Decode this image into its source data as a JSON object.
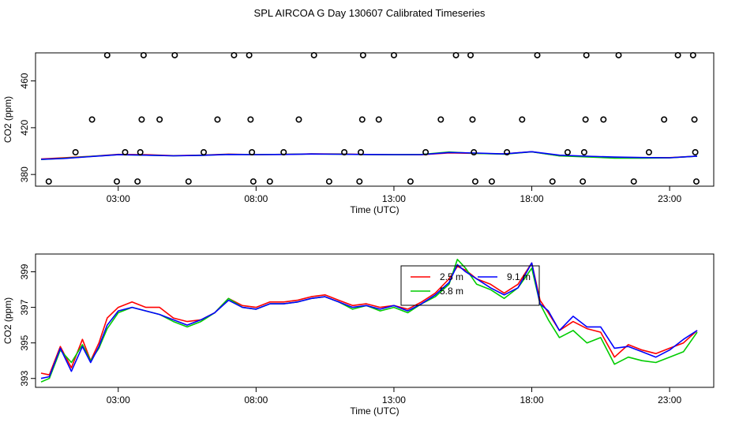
{
  "title": "SPL AIRCOA G  Day 130607  Calibrated Timeseries",
  "colors": {
    "red": "#ff0000",
    "green": "#00cc00",
    "blue": "#0000ff",
    "black": "#000000"
  },
  "chart_data": [
    {
      "type": "scatter",
      "name": "top-panel",
      "xlabel": "Time (UTC)",
      "ylabel": "CO2 (ppm)",
      "xlim": [
        0,
        24.6
      ],
      "ylim": [
        370,
        484
      ],
      "xticks": [
        3,
        8,
        13,
        18,
        23
      ],
      "xtick_labels": [
        "03:00",
        "08:00",
        "13:00",
        "18:00",
        "23:00"
      ],
      "yticks": [
        380,
        420,
        460
      ],
      "ytick_labels": [
        "380",
        "420",
        "460"
      ],
      "points": [
        {
          "x": 0.48,
          "y": 374
        },
        {
          "x": 1.45,
          "y": 399
        },
        {
          "x": 2.05,
          "y": 427
        },
        {
          "x": 2.6,
          "y": 482
        },
        {
          "x": 2.95,
          "y": 374
        },
        {
          "x": 3.25,
          "y": 399
        },
        {
          "x": 3.7,
          "y": 374
        },
        {
          "x": 3.8,
          "y": 399
        },
        {
          "x": 3.85,
          "y": 427
        },
        {
          "x": 3.92,
          "y": 482
        },
        {
          "x": 4.5,
          "y": 427
        },
        {
          "x": 5.05,
          "y": 482
        },
        {
          "x": 5.55,
          "y": 374
        },
        {
          "x": 6.1,
          "y": 399
        },
        {
          "x": 6.6,
          "y": 427
        },
        {
          "x": 7.2,
          "y": 482
        },
        {
          "x": 7.75,
          "y": 482
        },
        {
          "x": 7.8,
          "y": 427
        },
        {
          "x": 7.85,
          "y": 399
        },
        {
          "x": 7.9,
          "y": 374
        },
        {
          "x": 8.5,
          "y": 374
        },
        {
          "x": 9.0,
          "y": 399
        },
        {
          "x": 9.55,
          "y": 427
        },
        {
          "x": 10.1,
          "y": 482
        },
        {
          "x": 10.65,
          "y": 374
        },
        {
          "x": 11.2,
          "y": 399
        },
        {
          "x": 11.75,
          "y": 374
        },
        {
          "x": 11.8,
          "y": 399
        },
        {
          "x": 11.85,
          "y": 427
        },
        {
          "x": 11.88,
          "y": 482
        },
        {
          "x": 12.45,
          "y": 427
        },
        {
          "x": 13.0,
          "y": 482
        },
        {
          "x": 13.6,
          "y": 374
        },
        {
          "x": 14.15,
          "y": 399
        },
        {
          "x": 14.7,
          "y": 427
        },
        {
          "x": 15.25,
          "y": 482
        },
        {
          "x": 15.78,
          "y": 482
        },
        {
          "x": 15.85,
          "y": 427
        },
        {
          "x": 15.9,
          "y": 399
        },
        {
          "x": 15.95,
          "y": 374
        },
        {
          "x": 16.55,
          "y": 374
        },
        {
          "x": 17.1,
          "y": 399
        },
        {
          "x": 17.65,
          "y": 427
        },
        {
          "x": 18.2,
          "y": 482
        },
        {
          "x": 18.75,
          "y": 374
        },
        {
          "x": 19.3,
          "y": 399
        },
        {
          "x": 19.85,
          "y": 374
        },
        {
          "x": 19.9,
          "y": 399
        },
        {
          "x": 19.95,
          "y": 427
        },
        {
          "x": 19.98,
          "y": 482
        },
        {
          "x": 20.6,
          "y": 427
        },
        {
          "x": 21.15,
          "y": 482
        },
        {
          "x": 21.7,
          "y": 374
        },
        {
          "x": 22.25,
          "y": 399
        },
        {
          "x": 22.8,
          "y": 427
        },
        {
          "x": 23.3,
          "y": 482
        },
        {
          "x": 23.85,
          "y": 482
        },
        {
          "x": 23.9,
          "y": 427
        },
        {
          "x": 23.93,
          "y": 399
        },
        {
          "x": 23.97,
          "y": 374
        }
      ],
      "series": [
        {
          "name": "2.5 m",
          "color": "#ff0000",
          "x": [
            0.2,
            1,
            2,
            3,
            4,
            5,
            6,
            7,
            8,
            9,
            10,
            11,
            12,
            13,
            14,
            15,
            16,
            17,
            18,
            19,
            20,
            21,
            22,
            23,
            24
          ],
          "y": [
            393.2,
            394.2,
            395.5,
            397.2,
            396.9,
            396.1,
            396.5,
            397.4,
            397.0,
            397.2,
            397.6,
            397.5,
            397.1,
            397.0,
            396.9,
            398.5,
            398.0,
            397.6,
            399.5,
            396.0,
            395.5,
            394.6,
            394.4,
            394.4,
            395.7
          ]
        },
        {
          "name": "5.8 m",
          "color": "#00cc00",
          "x": [
            0.2,
            1,
            2,
            3,
            4,
            5,
            6,
            7,
            8,
            9,
            10,
            11,
            12,
            13,
            14,
            15,
            16,
            17,
            18,
            19,
            20,
            21,
            22,
            23,
            24
          ],
          "y": [
            392.8,
            393.8,
            395.4,
            396.9,
            396.5,
            396.0,
            396.4,
            397.2,
            397.0,
            397.2,
            397.5,
            397.4,
            397.0,
            396.9,
            397.1,
            399.2,
            398.0,
            397.4,
            399.4,
            395.9,
            395.0,
            394.0,
            394.0,
            394.2,
            395.7
          ]
        },
        {
          "name": "9.1 m",
          "color": "#0000ff",
          "x": [
            0.2,
            1,
            2,
            3,
            4,
            5,
            6,
            7,
            8,
            9,
            10,
            11,
            12,
            13,
            14,
            15,
            16,
            17,
            18,
            19,
            20,
            21,
            22,
            23,
            24
          ],
          "y": [
            393.0,
            393.6,
            395.3,
            396.9,
            396.5,
            396.0,
            396.4,
            397.1,
            397.0,
            397.1,
            397.5,
            397.3,
            397.1,
            397.0,
            397.0,
            398.8,
            398.3,
            397.6,
            399.5,
            396.5,
            395.6,
            394.9,
            394.5,
            394.3,
            395.7
          ]
        }
      ]
    },
    {
      "type": "line",
      "name": "bottom-panel",
      "xlabel": "Time (UTC)",
      "ylabel": "CO2 (ppm)",
      "xlim": [
        0,
        24.6
      ],
      "ylim": [
        392.5,
        400.0
      ],
      "xticks": [
        3,
        8,
        13,
        18,
        23
      ],
      "xtick_labels": [
        "03:00",
        "08:00",
        "13:00",
        "18:00",
        "23:00"
      ],
      "yticks": [
        393,
        395,
        397,
        399
      ],
      "ytick_labels": [
        "393",
        "395",
        "397",
        "399"
      ],
      "legend": {
        "placement": "top-center",
        "entries": [
          "2.5 m",
          "5.8 m",
          "9.1 m"
        ]
      },
      "series": [
        {
          "name": "2.5 m",
          "color": "#ff0000",
          "x": [
            0.2,
            0.5,
            0.9,
            1.3,
            1.7,
            2.0,
            2.3,
            2.6,
            3.0,
            3.5,
            4.0,
            4.5,
            5.0,
            5.5,
            6.0,
            6.5,
            7.0,
            7.5,
            8.0,
            8.5,
            9.0,
            9.5,
            10.0,
            10.5,
            11.0,
            11.5,
            12.0,
            12.5,
            13.0,
            13.5,
            14.0,
            14.5,
            15.0,
            15.3,
            15.6,
            16.0,
            16.5,
            17.0,
            17.5,
            18.0,
            18.3,
            18.6,
            19.0,
            19.5,
            20.0,
            20.5,
            21.0,
            21.5,
            22.0,
            22.5,
            23.0,
            23.5,
            24.0
          ],
          "y": [
            393.3,
            393.2,
            394.8,
            393.6,
            395.2,
            394.0,
            395.0,
            396.4,
            397.0,
            397.3,
            397.0,
            397.0,
            396.4,
            396.2,
            396.3,
            396.7,
            397.5,
            397.1,
            397.0,
            397.3,
            397.3,
            397.4,
            397.6,
            397.7,
            397.4,
            397.1,
            397.2,
            397.0,
            397.1,
            396.9,
            397.3,
            397.8,
            398.6,
            399.3,
            399.1,
            398.6,
            398.3,
            397.8,
            398.3,
            399.5,
            397.4,
            396.7,
            395.7,
            396.2,
            395.8,
            395.6,
            394.2,
            394.9,
            394.6,
            394.4,
            394.7,
            395.0,
            395.7
          ]
        },
        {
          "name": "5.8 m",
          "color": "#00cc00",
          "x": [
            0.2,
            0.5,
            0.9,
            1.3,
            1.7,
            2.0,
            2.3,
            2.6,
            3.0,
            3.5,
            4.0,
            4.5,
            5.0,
            5.5,
            6.0,
            6.5,
            7.0,
            7.5,
            8.0,
            8.5,
            9.0,
            9.5,
            10.0,
            10.5,
            11.0,
            11.5,
            12.0,
            12.5,
            13.0,
            13.5,
            14.0,
            14.5,
            15.0,
            15.3,
            15.6,
            16.0,
            16.5,
            17.0,
            17.5,
            18.0,
            18.3,
            18.6,
            19.0,
            19.5,
            20.0,
            20.5,
            21.0,
            21.5,
            22.0,
            22.5,
            23.0,
            23.5,
            24.0
          ],
          "y": [
            392.8,
            393.0,
            394.6,
            393.9,
            394.9,
            394.0,
            394.7,
            395.8,
            396.7,
            397.0,
            396.8,
            396.6,
            396.2,
            395.9,
            396.2,
            396.7,
            397.5,
            397.0,
            396.9,
            397.2,
            397.2,
            397.3,
            397.5,
            397.6,
            397.3,
            396.9,
            397.1,
            396.8,
            397.0,
            396.7,
            397.2,
            397.6,
            398.3,
            399.7,
            399.2,
            398.3,
            398.0,
            397.5,
            398.1,
            399.2,
            397.2,
            396.3,
            395.3,
            395.7,
            395.0,
            395.3,
            393.8,
            394.2,
            394.0,
            393.9,
            394.2,
            394.5,
            395.6
          ]
        },
        {
          "name": "9.1 m",
          "color": "#0000ff",
          "x": [
            0.2,
            0.5,
            0.9,
            1.3,
            1.7,
            2.0,
            2.3,
            2.6,
            3.0,
            3.5,
            4.0,
            4.5,
            5.0,
            5.5,
            6.0,
            6.5,
            7.0,
            7.5,
            8.0,
            8.5,
            9.0,
            9.5,
            10.0,
            10.5,
            11.0,
            11.5,
            12.0,
            12.5,
            13.0,
            13.5,
            14.0,
            14.5,
            15.0,
            15.3,
            15.6,
            16.0,
            16.5,
            17.0,
            17.5,
            18.0,
            18.3,
            18.6,
            19.0,
            19.5,
            20.0,
            20.5,
            21.0,
            21.5,
            22.0,
            22.5,
            23.0,
            23.5,
            24.0
          ],
          "y": [
            393.0,
            393.1,
            394.7,
            393.4,
            394.8,
            393.9,
            394.8,
            396.0,
            396.8,
            397.0,
            396.8,
            396.6,
            396.3,
            396.0,
            396.3,
            396.7,
            397.4,
            397.0,
            396.9,
            397.2,
            397.2,
            397.3,
            397.5,
            397.6,
            397.3,
            397.0,
            397.1,
            396.9,
            397.1,
            396.8,
            397.2,
            397.7,
            398.4,
            399.4,
            399.0,
            398.6,
            398.1,
            397.7,
            398.1,
            399.5,
            397.2,
            396.8,
            395.7,
            396.5,
            395.9,
            395.9,
            394.7,
            394.8,
            394.5,
            394.2,
            394.6,
            395.2,
            395.7
          ]
        }
      ]
    }
  ]
}
